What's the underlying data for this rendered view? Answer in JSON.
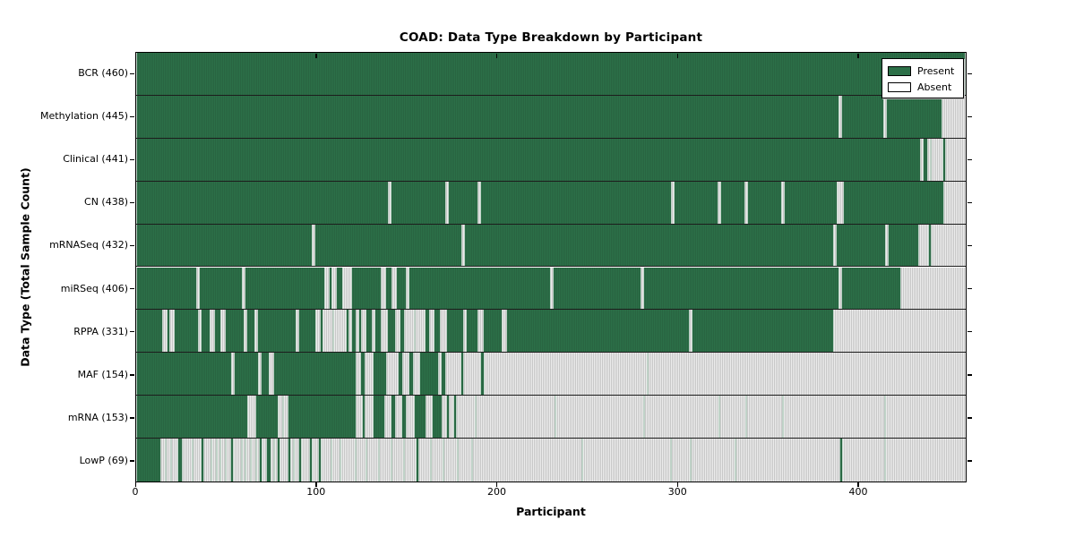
{
  "colors": {
    "present_green": "#2c7048",
    "present_edge": "#225538",
    "absent_gray": "#d9d9d9",
    "border_black": "#000000"
  },
  "legend": {
    "present_label": "Present",
    "absent_label": "Absent"
  },
  "chart_data": {
    "type": "heatmap",
    "title": "COAD: Data Type Breakdown by Participant",
    "xlabel": "Participant",
    "ylabel": "Data Type (Total Sample Count)",
    "xlim": [
      0,
      460
    ],
    "x_ticks": [
      0,
      100,
      200,
      300,
      400
    ],
    "grid": false,
    "legend_position": "upper right",
    "legend_entries": [
      "Present",
      "Absent"
    ],
    "rows": [
      {
        "name": "BCR",
        "label": "BCR (460)",
        "count": 460,
        "present_segments": [
          [
            0,
            460
          ]
        ]
      },
      {
        "name": "Methylation",
        "label": "Methylation (445)",
        "count": 445,
        "present_segments": [
          [
            0,
            390
          ],
          [
            391,
            415
          ],
          [
            416,
            447
          ]
        ]
      },
      {
        "name": "Clinical",
        "label": "Clinical (441)",
        "count": 441,
        "present_segments": [
          [
            0,
            435
          ],
          [
            436,
            439
          ],
          [
            440,
            441
          ],
          [
            447,
            449
          ]
        ]
      },
      {
        "name": "CN",
        "label": "CN (438)",
        "count": 438,
        "present_segments": [
          [
            0,
            140
          ],
          [
            141,
            172
          ],
          [
            173,
            190
          ],
          [
            191,
            297
          ],
          [
            298,
            323
          ],
          [
            324,
            338
          ],
          [
            339,
            358
          ],
          [
            359,
            389
          ],
          [
            392,
            448
          ]
        ]
      },
      {
        "name": "mRNASeq",
        "label": "mRNASeq (432)",
        "count": 432,
        "present_segments": [
          [
            0,
            98
          ],
          [
            99,
            181
          ],
          [
            182,
            387
          ],
          [
            388,
            416
          ],
          [
            417,
            434
          ],
          [
            439,
            441
          ]
        ]
      },
      {
        "name": "miRSeq",
        "label": "miRSeq (406)",
        "count": 406,
        "present_segments": [
          [
            0,
            34
          ],
          [
            35,
            59
          ],
          [
            60,
            105
          ],
          [
            107,
            109
          ],
          [
            111,
            115
          ],
          [
            119,
            136
          ],
          [
            138,
            142
          ],
          [
            144,
            150
          ],
          [
            151,
            230
          ],
          [
            231,
            280
          ],
          [
            281,
            390
          ],
          [
            391,
            424
          ]
        ]
      },
      {
        "name": "RPPA",
        "label": "RPPA (331)",
        "count": 331,
        "present_segments": [
          [
            0,
            15
          ],
          [
            17,
            19
          ],
          [
            21,
            35
          ],
          [
            36,
            41
          ],
          [
            43,
            47
          ],
          [
            49,
            60
          ],
          [
            61,
            66
          ],
          [
            67,
            89
          ],
          [
            90,
            100
          ],
          [
            102,
            104
          ],
          [
            109,
            110
          ],
          [
            116,
            118
          ],
          [
            119,
            122
          ],
          [
            123,
            125
          ],
          [
            127,
            131
          ],
          [
            132,
            136
          ],
          [
            139,
            144
          ],
          [
            146,
            149
          ],
          [
            154,
            155
          ],
          [
            160,
            163
          ],
          [
            165,
            169
          ],
          [
            172,
            182
          ],
          [
            183,
            190
          ],
          [
            192,
            203
          ],
          [
            205,
            307
          ],
          [
            308,
            387
          ]
        ]
      },
      {
        "name": "MAF",
        "label": "MAF (154)",
        "count": 154,
        "present_segments": [
          [
            0,
            53
          ],
          [
            54,
            68
          ],
          [
            69,
            74
          ],
          [
            76,
            122
          ],
          [
            124,
            127
          ],
          [
            131,
            139
          ],
          [
            145,
            148
          ],
          [
            151,
            154
          ],
          [
            157,
            168
          ],
          [
            169,
            172
          ],
          [
            180,
            182
          ],
          [
            191,
            193
          ],
          [
            283,
            284
          ]
        ]
      },
      {
        "name": "mRNA",
        "label": "mRNA (153)",
        "count": 153,
        "present_segments": [
          [
            0,
            62
          ],
          [
            66,
            79
          ],
          [
            81,
            82
          ],
          [
            84,
            122
          ],
          [
            125,
            127
          ],
          [
            131,
            138
          ],
          [
            141,
            144
          ],
          [
            147,
            150
          ],
          [
            154,
            161
          ],
          [
            164,
            170
          ],
          [
            172,
            174
          ],
          [
            176,
            178
          ],
          [
            188,
            189
          ],
          [
            232,
            233
          ],
          [
            281,
            282
          ],
          [
            323,
            324
          ],
          [
            338,
            339
          ],
          [
            358,
            359
          ],
          [
            415,
            416
          ]
        ]
      },
      {
        "name": "LowP",
        "label": "LowP (69)",
        "count": 69,
        "present_segments": [
          [
            0,
            14
          ],
          [
            16,
            17
          ],
          [
            19,
            20
          ],
          [
            23,
            26
          ],
          [
            31,
            32
          ],
          [
            36,
            38
          ],
          [
            41,
            42
          ],
          [
            44,
            45
          ],
          [
            46,
            47
          ],
          [
            49,
            50
          ],
          [
            52,
            54
          ],
          [
            58,
            59
          ],
          [
            60,
            61
          ],
          [
            63,
            64
          ],
          [
            66,
            67
          ],
          [
            68,
            70
          ],
          [
            72,
            75
          ],
          [
            76,
            77
          ],
          [
            78,
            80
          ],
          [
            84,
            86
          ],
          [
            87,
            88
          ],
          [
            90,
            92
          ],
          [
            96,
            98
          ],
          [
            101,
            103
          ],
          [
            108,
            109
          ],
          [
            113,
            114
          ],
          [
            121,
            122
          ],
          [
            127,
            128
          ],
          [
            134,
            135
          ],
          [
            141,
            142
          ],
          [
            148,
            149
          ],
          [
            155,
            157
          ],
          [
            163,
            164
          ],
          [
            170,
            171
          ],
          [
            178,
            179
          ],
          [
            186,
            187
          ],
          [
            247,
            248
          ],
          [
            296,
            297
          ],
          [
            307,
            308
          ],
          [
            332,
            333
          ],
          [
            390,
            392
          ],
          [
            415,
            416
          ]
        ]
      }
    ]
  }
}
